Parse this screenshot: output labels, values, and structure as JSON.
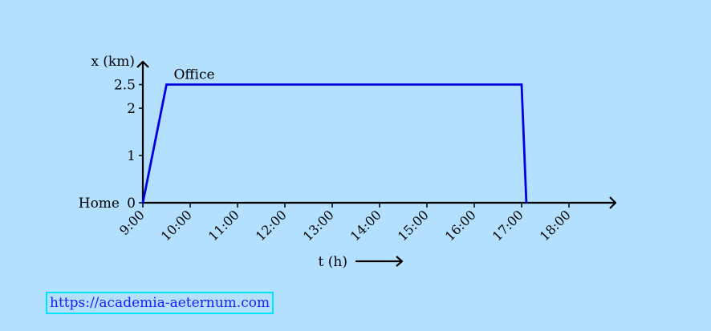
{
  "chart_data": {
    "type": "line",
    "title": "",
    "xlabel": "t (h)",
    "ylabel": "x (km)",
    "x_ticks": [
      "9:00",
      "10:00",
      "11:00",
      "12:00",
      "13:00",
      "14:00",
      "15:00",
      "16:00",
      "17:00",
      "18:00"
    ],
    "y_ticks": [
      0,
      1,
      2,
      2.5
    ],
    "xlim": [
      "9:00",
      "19:00"
    ],
    "ylim": [
      0,
      2.7
    ],
    "series": [
      {
        "color": "#0000e0",
        "points": [
          {
            "x": "9:00",
            "y": 0
          },
          {
            "x": "9:30",
            "y": 2.5
          },
          {
            "x": "17:00",
            "y": 2.5
          },
          {
            "x": "17:06",
            "y": 0
          }
        ]
      }
    ],
    "annotations": [
      {
        "text": "Office",
        "x": "9:30",
        "y": 2.5
      },
      {
        "text": "Home",
        "x": "9:00",
        "y": 0
      }
    ]
  },
  "footer": {
    "link_text": "https://academia-aeternum.com"
  },
  "colors": {
    "background": "#b3e0ff",
    "line": "#0000e0",
    "link": "#1a1aff",
    "link_border": "#00e5ff"
  }
}
